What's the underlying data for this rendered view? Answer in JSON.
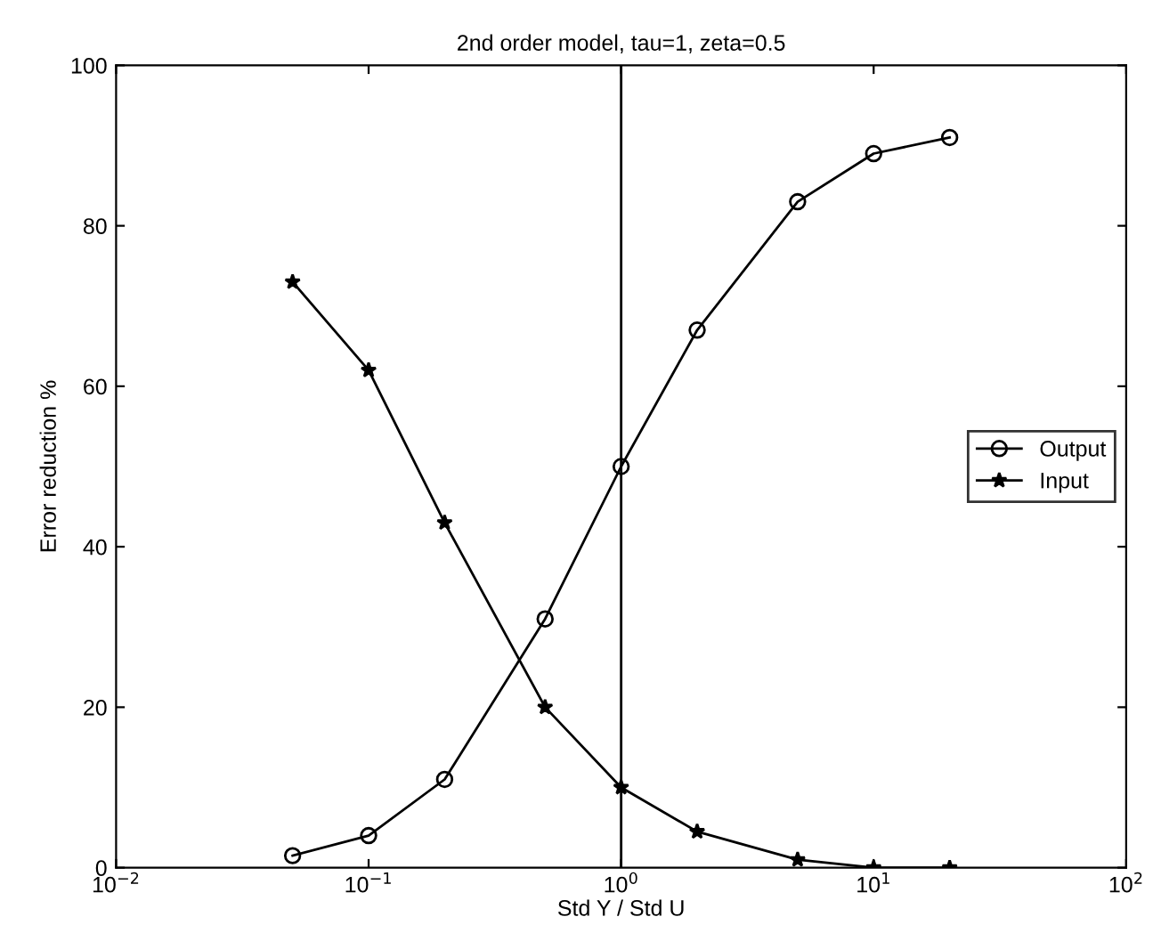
{
  "chart_data": {
    "type": "line",
    "title": "2nd order model, tau=1, zeta=0.5",
    "xlabel": "Std Y / Std U",
    "ylabel": "Error reduction %",
    "x": [
      0.05,
      0.1,
      0.2,
      0.5,
      1,
      2,
      5,
      10,
      20
    ],
    "series": [
      {
        "name": "Output",
        "color": "#000000",
        "marker": "circle",
        "values": [
          1.5,
          4,
          11,
          31,
          50,
          67,
          83,
          89,
          91
        ]
      },
      {
        "name": "Input",
        "color": "#000000",
        "marker": "star",
        "values": [
          73,
          62,
          43,
          20,
          10,
          4.5,
          1,
          0,
          0
        ]
      }
    ],
    "log": "x",
    "xlim": [
      0.01,
      100
    ],
    "xticks": [
      {
        "value": 0.01,
        "label": "10$^{−2}$"
      },
      {
        "value": 0.1,
        "label": "10$^{−1}$"
      },
      {
        "value": 1,
        "label": "10$^{0}$"
      },
      {
        "value": 10,
        "label": "10$^{1}$"
      },
      {
        "value": 100,
        "label": "10$^{2}$"
      }
    ],
    "ylim": [
      0,
      100
    ],
    "yticks": [
      0,
      20,
      40,
      60,
      80,
      100
    ],
    "ref_lines": [
      {
        "axis": "x",
        "value": 1,
        "color": "#000000"
      }
    ],
    "legend": "right",
    "grid": false,
    "line_style": "solid"
  }
}
